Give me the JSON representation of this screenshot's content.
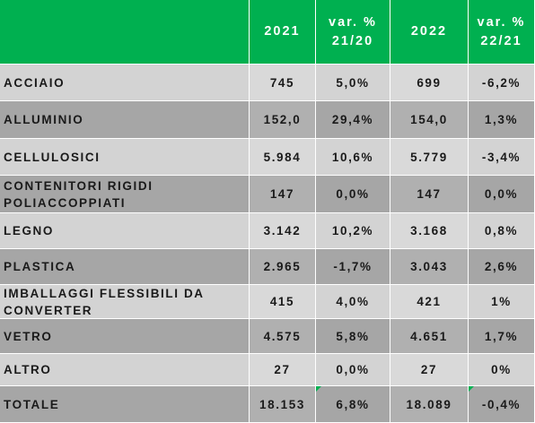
{
  "header": {
    "label": "",
    "col_2021": "2021",
    "col_var_21_20": "var. %\n21/20",
    "col_2022": "2022",
    "col_var_22_21": "var. %\n22/21"
  },
  "rows": [
    {
      "label": "ACCIAIO",
      "v2021": "745",
      "var2120": "5,0%",
      "v2022": "699",
      "var2221": "-6,2%"
    },
    {
      "label": "ALLUMINIO",
      "v2021": "152,0",
      "var2120": "29,4%",
      "v2022": "154,0",
      "var2221": "1,3%"
    },
    {
      "label": "CELLULOSICI",
      "v2021": "5.984",
      "var2120": "10,6%",
      "v2022": "5.779",
      "var2221": "-3,4%"
    },
    {
      "label": "CONTENITORI RIGIDI\nPOLIACCOPPIATI",
      "v2021": "147",
      "var2120": "0,0%",
      "v2022": "147",
      "var2221": "0,0%"
    },
    {
      "label": "LEGNO",
      "v2021": "3.142",
      "var2120": "10,2%",
      "v2022": "3.168",
      "var2221": "0,8%"
    },
    {
      "label": "PLASTICA",
      "v2021": "2.965",
      "var2120": "-1,7%",
      "v2022": "3.043",
      "var2221": "2,6%"
    },
    {
      "label": "IMBALLAGGI FLESSIBILI DA\nCONVERTER",
      "v2021": "415",
      "var2120": "4,0%",
      "v2022": "421",
      "var2221": "1%"
    },
    {
      "label": "VETRO",
      "v2021": "4.575",
      "var2120": "5,8%",
      "v2022": "4.651",
      "var2221": "1,7%"
    },
    {
      "label": "ALTRO",
      "v2021": "27",
      "var2120": "0,0%",
      "v2022": "27",
      "var2221": "0%"
    }
  ],
  "total": {
    "label": "TOTALE",
    "v2021": "18.153",
    "var2120": "6,8%",
    "v2022": "18.089",
    "var2221": "-0,4%"
  },
  "colors": {
    "header_green": "#00b050",
    "row_light": "#d3d3d3",
    "row_dark": "#a6a6a6"
  }
}
